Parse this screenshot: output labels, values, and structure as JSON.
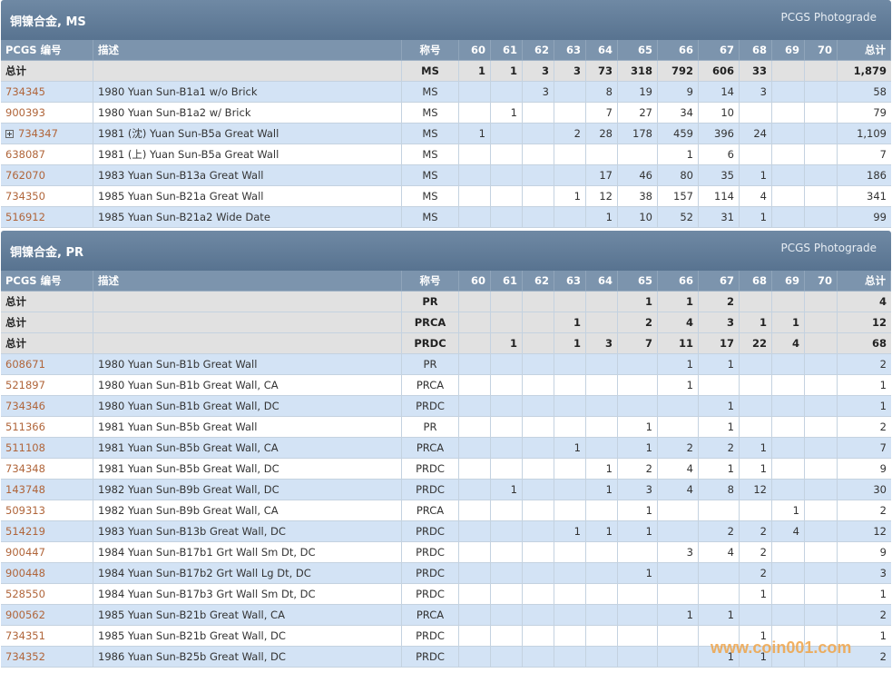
{
  "columns": [
    "PCGS 编号",
    "描述",
    "称号",
    "60",
    "61",
    "62",
    "63",
    "64",
    "65",
    "66",
    "67",
    "68",
    "69",
    "70",
    "总计"
  ],
  "sections": [
    {
      "title": "铜镍合金, MS",
      "photograde": "PCGS Photograde",
      "totals": [
        {
          "label": "总计",
          "designation": "MS",
          "grades": [
            "1",
            "1",
            "3",
            "3",
            "73",
            "318",
            "792",
            "606",
            "33",
            null,
            null,
            "1,879"
          ]
        }
      ],
      "rows": [
        {
          "number": "734345",
          "description": "1980 Yuan Sun-B1a1 w/o Brick",
          "designation": "MS",
          "grades": [
            null,
            null,
            "3",
            null,
            "8",
            "19",
            "9",
            "14",
            "3",
            null,
            null,
            "58"
          ]
        },
        {
          "number": "900393",
          "description": "1980 Yuan Sun-B1a2 w/ Brick",
          "designation": "MS",
          "grades": [
            null,
            "1",
            null,
            null,
            "7",
            "27",
            "34",
            "10",
            null,
            null,
            null,
            "79"
          ]
        },
        {
          "number": "734347",
          "description": "1981 (沈) Yuan Sun-B5a Great Wall",
          "designation": "MS",
          "expandable": true,
          "grades": [
            "1",
            null,
            null,
            "2",
            "28",
            "178",
            "459",
            "396",
            "24",
            null,
            null,
            "1,109"
          ]
        },
        {
          "number": "638087",
          "description": "1981 (上) Yuan Sun-B5a Great Wall",
          "designation": "MS",
          "grades": [
            null,
            null,
            null,
            null,
            null,
            null,
            "1",
            "6",
            null,
            null,
            null,
            "7"
          ]
        },
        {
          "number": "762070",
          "description": "1983 Yuan Sun-B13a Great Wall",
          "designation": "MS",
          "grades": [
            null,
            null,
            null,
            null,
            "17",
            "46",
            "80",
            "35",
            "1",
            null,
            null,
            "186"
          ]
        },
        {
          "number": "734350",
          "description": "1985 Yuan Sun-B21a Great Wall",
          "designation": "MS",
          "grades": [
            null,
            null,
            null,
            "1",
            "12",
            "38",
            "157",
            "114",
            "4",
            null,
            null,
            "341"
          ]
        },
        {
          "number": "516912",
          "description": "1985 Yuan Sun-B21a2 Wide Date",
          "designation": "MS",
          "grades": [
            null,
            null,
            null,
            null,
            "1",
            "10",
            "52",
            "31",
            "1",
            null,
            null,
            "99"
          ]
        }
      ]
    },
    {
      "title": "铜镍合金, PR",
      "photograde": "PCGS Photograde",
      "totals": [
        {
          "label": "总计",
          "designation": "PR",
          "grades": [
            null,
            null,
            null,
            null,
            null,
            "1",
            "1",
            "2",
            null,
            null,
            null,
            "4"
          ]
        },
        {
          "label": "总计",
          "designation": "PRCA",
          "grades": [
            null,
            null,
            null,
            "1",
            null,
            "2",
            "4",
            "3",
            "1",
            "1",
            null,
            "12"
          ]
        },
        {
          "label": "总计",
          "designation": "PRDC",
          "grades": [
            null,
            "1",
            null,
            "1",
            "3",
            "7",
            "11",
            "17",
            "22",
            "4",
            null,
            "68"
          ]
        }
      ],
      "rows": [
        {
          "number": "608671",
          "description": "1980 Yuan Sun-B1b Great Wall",
          "designation": "PR",
          "grades": [
            null,
            null,
            null,
            null,
            null,
            null,
            "1",
            "1",
            null,
            null,
            null,
            "2"
          ]
        },
        {
          "number": "521897",
          "description": "1980 Yuan Sun-B1b Great Wall, CA",
          "designation": "PRCA",
          "grades": [
            null,
            null,
            null,
            null,
            null,
            null,
            "1",
            null,
            null,
            null,
            null,
            "1"
          ]
        },
        {
          "number": "734346",
          "description": "1980 Yuan Sun-B1b Great Wall, DC",
          "designation": "PRDC",
          "grades": [
            null,
            null,
            null,
            null,
            null,
            null,
            null,
            "1",
            null,
            null,
            null,
            "1"
          ]
        },
        {
          "number": "511366",
          "description": "1981 Yuan Sun-B5b Great Wall",
          "designation": "PR",
          "grades": [
            null,
            null,
            null,
            null,
            null,
            "1",
            null,
            "1",
            null,
            null,
            null,
            "2"
          ]
        },
        {
          "number": "511108",
          "description": "1981 Yuan Sun-B5b Great Wall, CA",
          "designation": "PRCA",
          "grades": [
            null,
            null,
            null,
            "1",
            null,
            "1",
            "2",
            "2",
            "1",
            null,
            null,
            "7"
          ]
        },
        {
          "number": "734348",
          "description": "1981 Yuan Sun-B5b Great Wall, DC",
          "designation": "PRDC",
          "grades": [
            null,
            null,
            null,
            null,
            "1",
            "2",
            "4",
            "1",
            "1",
            null,
            null,
            "9"
          ]
        },
        {
          "number": "143748",
          "description": "1982 Yuan Sun-B9b Great Wall, DC",
          "designation": "PRDC",
          "grades": [
            null,
            "1",
            null,
            null,
            "1",
            "3",
            "4",
            "8",
            "12",
            null,
            null,
            "30"
          ]
        },
        {
          "number": "509313",
          "description": "1982 Yuan Sun-B9b Great Wall, CA",
          "designation": "PRCA",
          "grades": [
            null,
            null,
            null,
            null,
            null,
            "1",
            null,
            null,
            null,
            "1",
            null,
            "2"
          ]
        },
        {
          "number": "514219",
          "description": "1983 Yuan Sun-B13b Great Wall, DC",
          "designation": "PRDC",
          "grades": [
            null,
            null,
            null,
            "1",
            "1",
            "1",
            null,
            "2",
            "2",
            "4",
            null,
            "12"
          ]
        },
        {
          "number": "900447",
          "description": "1984 Yuan Sun-B17b1 Grt Wall Sm Dt, DC",
          "designation": "PRDC",
          "grades": [
            null,
            null,
            null,
            null,
            null,
            null,
            "3",
            "4",
            "2",
            null,
            null,
            "9"
          ]
        },
        {
          "number": "900448",
          "description": "1984 Yuan Sun-B17b2 Grt Wall Lg Dt, DC",
          "designation": "PRDC",
          "grades": [
            null,
            null,
            null,
            null,
            null,
            "1",
            null,
            null,
            "2",
            null,
            null,
            "3"
          ]
        },
        {
          "number": "528550",
          "description": "1984 Yuan Sun-B17b3 Grt Wall Sm Dt, DC",
          "designation": "PRDC",
          "grades": [
            null,
            null,
            null,
            null,
            null,
            null,
            null,
            null,
            "1",
            null,
            null,
            "1"
          ]
        },
        {
          "number": "900562",
          "description": "1985 Yuan Sun-B21b Great Wall, CA",
          "designation": "PRCA",
          "grades": [
            null,
            null,
            null,
            null,
            null,
            null,
            "1",
            "1",
            null,
            null,
            null,
            "2"
          ]
        },
        {
          "number": "734351",
          "description": "1985 Yuan Sun-B21b Great Wall, DC",
          "designation": "PRDC",
          "grades": [
            null,
            null,
            null,
            null,
            null,
            null,
            null,
            null,
            "1",
            null,
            null,
            "1"
          ]
        },
        {
          "number": "734352",
          "description": "1986 Yuan Sun-B25b Great Wall, DC",
          "designation": "PRDC",
          "grades": [
            null,
            null,
            null,
            null,
            null,
            null,
            null,
            "1",
            "1",
            null,
            null,
            "2"
          ]
        }
      ]
    }
  ],
  "watermark": "www.coin001.com"
}
